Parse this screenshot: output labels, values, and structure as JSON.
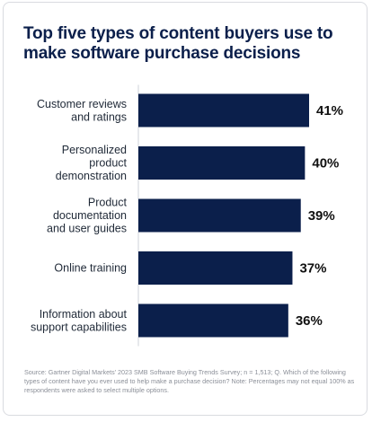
{
  "title": "Top five types of content buyers use to make software purchase decisions",
  "source": "Source: Gartner Digital Markets' 2023 SMB Software Buying Trends Survey; n = 1,513; Q. Which of the following types of content have you ever used to help make a purchase decision? Note: Percentages may not equal 100% as respondents were asked to select multiple options.",
  "colors": {
    "bar": "#0b1f4b",
    "title": "#0b1f4b",
    "axis": "#cfd3da"
  },
  "chart_data": {
    "type": "bar",
    "orientation": "horizontal",
    "categories": [
      [
        "Customer reviews",
        "and ratings"
      ],
      [
        "Personalized",
        "product",
        "demonstration"
      ],
      [
        "Product",
        "documentation",
        "and user guides"
      ],
      [
        "Online training"
      ],
      [
        "Information about",
        "support capabilities"
      ]
    ],
    "values": [
      41,
      40,
      39,
      37,
      36
    ],
    "data_labels": [
      "41%",
      "40%",
      "39%",
      "37%",
      "36%"
    ],
    "title": "Top five types of content buyers use to make software purchase decisions",
    "xlabel": "",
    "ylabel": "",
    "xlim": [
      0,
      41
    ],
    "grid": false,
    "legend": "none"
  }
}
